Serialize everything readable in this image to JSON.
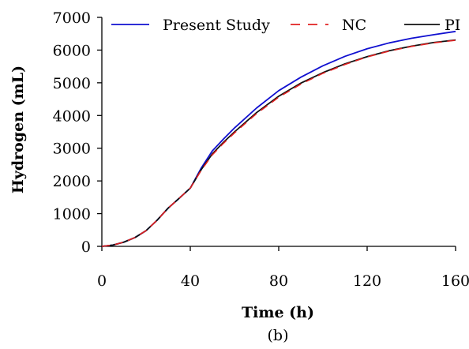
{
  "chart_data": {
    "type": "line",
    "title": "",
    "xlabel": "Time (h)",
    "ylabel": "Hydrogen (mL)",
    "caption": "(b)",
    "xlim": [
      0,
      160
    ],
    "ylim": [
      0,
      7000
    ],
    "xticks": [
      0,
      40,
      80,
      120,
      160
    ],
    "yticks": [
      0,
      1000,
      2000,
      3000,
      4000,
      5000,
      6000,
      7000
    ],
    "grid": false,
    "legend_position": "top",
    "series": [
      {
        "name": "Present Study",
        "color": "#1010d0",
        "dash": "solid",
        "x": [
          0,
          5,
          10,
          15,
          20,
          25,
          30,
          35,
          40,
          45,
          50,
          55,
          60,
          70,
          80,
          90,
          100,
          110,
          120,
          130,
          140,
          150,
          160
        ],
        "y": [
          0,
          40,
          130,
          270,
          480,
          800,
          1170,
          1470,
          1780,
          2400,
          2920,
          3280,
          3620,
          4230,
          4760,
          5170,
          5520,
          5810,
          6040,
          6220,
          6360,
          6470,
          6570
        ]
      },
      {
        "name": "NC",
        "color": "#e02020",
        "dash": "dashed",
        "x": [
          0,
          5,
          10,
          15,
          20,
          25,
          30,
          35,
          40,
          45,
          50,
          55,
          60,
          70,
          80,
          90,
          100,
          110,
          120,
          130,
          140,
          150,
          160
        ],
        "y": [
          0,
          40,
          130,
          270,
          480,
          800,
          1170,
          1470,
          1780,
          2330,
          2800,
          3150,
          3470,
          4060,
          4560,
          4960,
          5290,
          5560,
          5790,
          5970,
          6110,
          6220,
          6300
        ]
      },
      {
        "name": "PI",
        "color": "#111111",
        "dash": "solid",
        "x": [
          0,
          5,
          10,
          15,
          20,
          25,
          30,
          35,
          40,
          45,
          50,
          55,
          60,
          70,
          80,
          90,
          100,
          110,
          120,
          130,
          140,
          150,
          160
        ],
        "y": [
          0,
          40,
          130,
          270,
          480,
          800,
          1170,
          1470,
          1780,
          2350,
          2830,
          3180,
          3500,
          4090,
          4590,
          4990,
          5310,
          5580,
          5800,
          5980,
          6120,
          6230,
          6310
        ]
      }
    ]
  }
}
